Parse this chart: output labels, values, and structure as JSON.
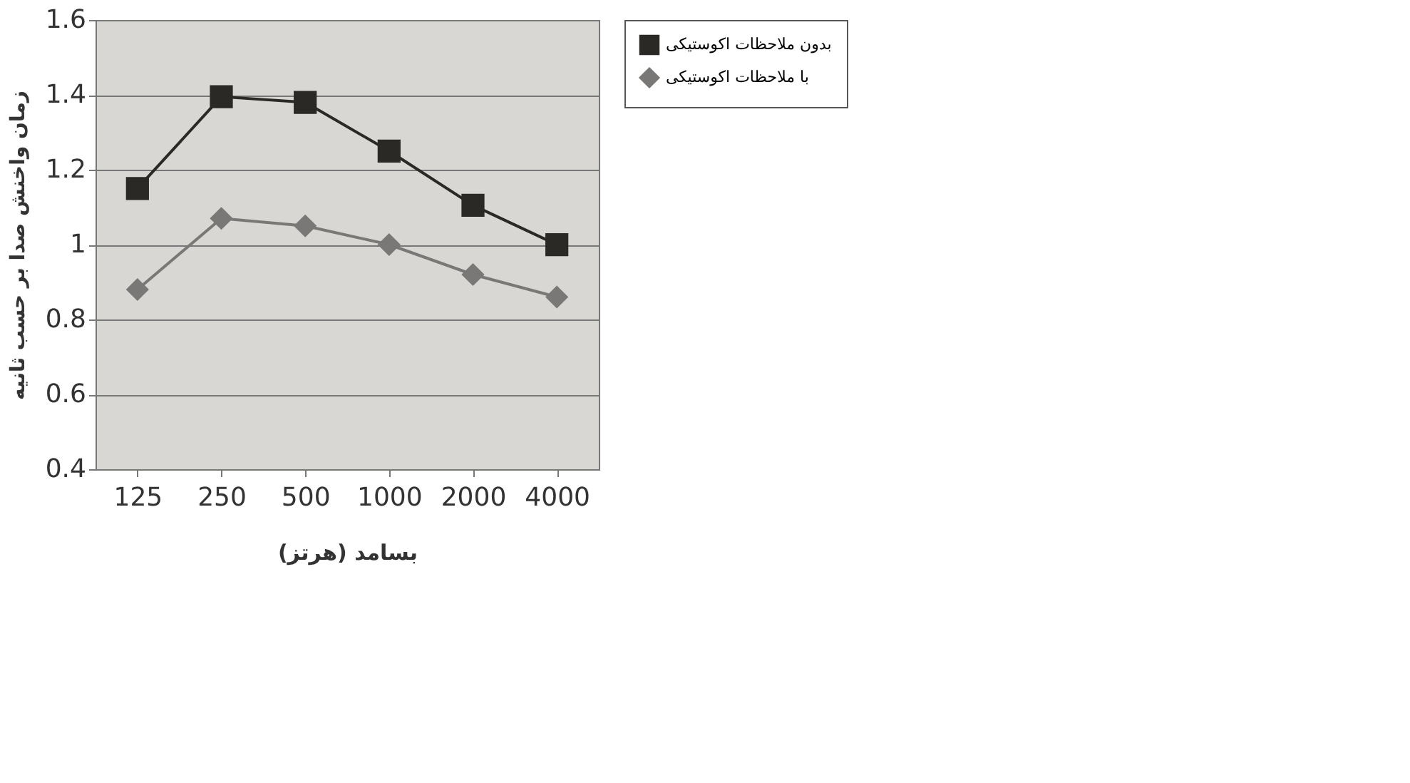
{
  "chart_data": {
    "type": "line",
    "xlabel": "بسامد (هرتز)",
    "ylabel": "زمان واخنش صدا بر حسب ثانیه",
    "categories": [
      "125",
      "250",
      "500",
      "1000",
      "2000",
      "4000"
    ],
    "series": [
      {
        "name": "بدون ملاحظات اکوستیکی",
        "color": "#2b2926",
        "marker": "square",
        "values": [
          1.15,
          1.395,
          1.38,
          1.25,
          1.105,
          1.0
        ]
      },
      {
        "name": "با ملاحظات اکوستیکی",
        "color": "#7a7876",
        "marker": "diamond",
        "values": [
          0.88,
          1.07,
          1.05,
          1.0,
          0.92,
          0.86
        ]
      }
    ],
    "ylim": [
      0.4,
      1.6
    ],
    "yticks": [
      0.4,
      0.6,
      0.8,
      1,
      1.2,
      1.4,
      1.6
    ],
    "grid": "y",
    "legend": "right",
    "line_style": "solid"
  }
}
